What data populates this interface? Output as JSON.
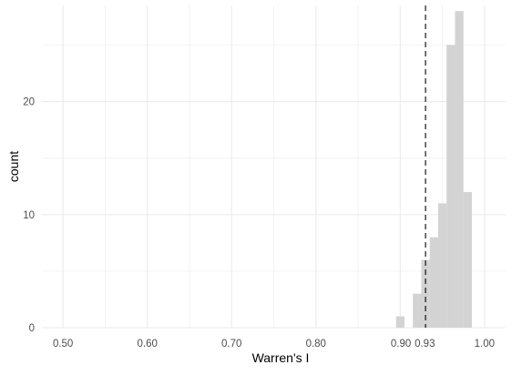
{
  "chart_data": {
    "type": "bar",
    "title": "",
    "xlabel": "Warren's I",
    "ylabel": "count",
    "xlim": [
      0.475,
      1.025
    ],
    "ylim": [
      0,
      28.5
    ],
    "x_ticks": [
      0.5,
      0.6,
      0.7,
      0.8,
      0.9,
      0.93,
      1.0
    ],
    "x_tick_labels": [
      "0.50",
      "0.60",
      "0.70",
      "0.80",
      "0.90",
      "0.93",
      "1.00"
    ],
    "y_ticks": [
      0,
      10,
      20
    ],
    "y_tick_labels": [
      "0",
      "10",
      "20"
    ],
    "grid": true,
    "bar_color": "#d3d3d3",
    "reference_line": {
      "x": 0.93,
      "style": "dashed",
      "color": "#000000"
    },
    "bins": [
      {
        "x0": 0.895,
        "x1": 0.905,
        "count": 1
      },
      {
        "x0": 0.915,
        "x1": 0.925,
        "count": 3
      },
      {
        "x0": 0.925,
        "x1": 0.935,
        "count": 6
      },
      {
        "x0": 0.935,
        "x1": 0.945,
        "count": 8
      },
      {
        "x0": 0.945,
        "x1": 0.955,
        "count": 11
      },
      {
        "x0": 0.955,
        "x1": 0.965,
        "count": 25
      },
      {
        "x0": 0.965,
        "x1": 0.975,
        "count": 28
      },
      {
        "x0": 0.975,
        "x1": 0.985,
        "count": 12
      }
    ]
  }
}
